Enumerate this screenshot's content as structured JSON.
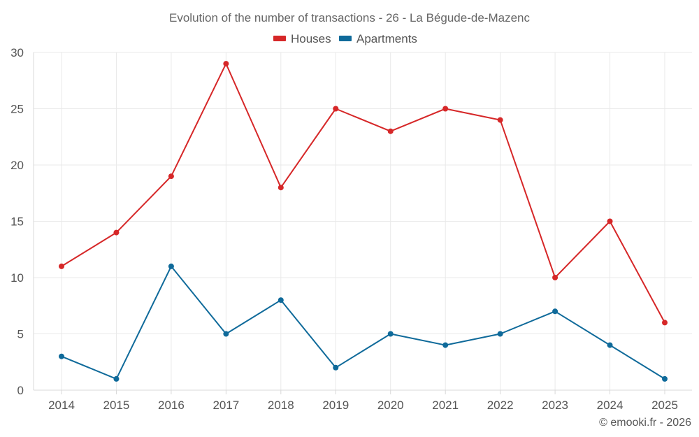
{
  "chart_data": {
    "type": "line",
    "title": "Evolution of the number of transactions - 26 - La Bégude-de-Mazenc",
    "categories": [
      "2014",
      "2015",
      "2016",
      "2017",
      "2018",
      "2019",
      "2020",
      "2021",
      "2022",
      "2023",
      "2024",
      "2025"
    ],
    "series": [
      {
        "name": "Houses",
        "color": "#d62728",
        "values": [
          11,
          14,
          19,
          29,
          18,
          25,
          23,
          25,
          24,
          10,
          15,
          6
        ]
      },
      {
        "name": "Apartments",
        "color": "#0f6a9a",
        "values": [
          3,
          1,
          11,
          5,
          8,
          2,
          5,
          4,
          5,
          7,
          4,
          1
        ]
      }
    ],
    "y_ticks": [
      "0",
      "5",
      "10",
      "15",
      "20",
      "25",
      "30"
    ],
    "ylim": [
      0,
      30
    ],
    "xlabel": "",
    "ylabel": "",
    "grid": true,
    "legend_position": "top-center"
  },
  "footer": {
    "credit": "© emooki.fr - 2026"
  }
}
